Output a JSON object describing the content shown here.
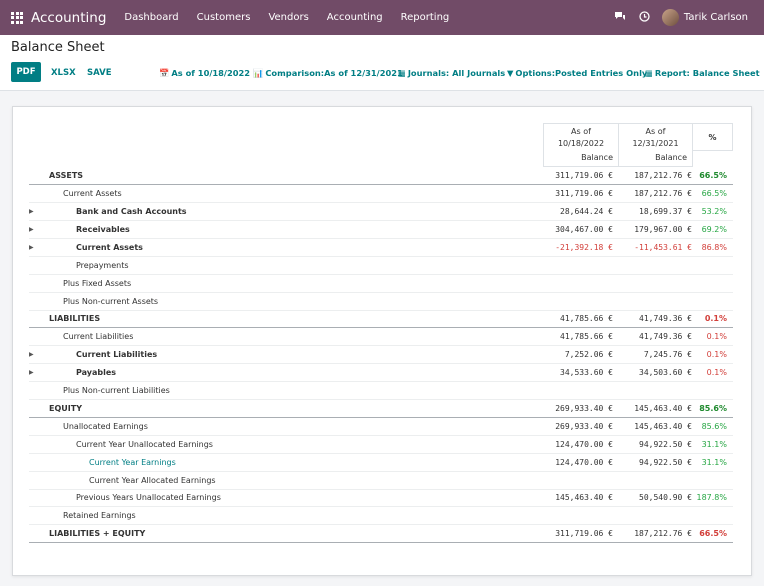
{
  "navbar": {
    "brand": "Accounting",
    "menus": [
      "Dashboard",
      "Customers",
      "Vendors",
      "Accounting",
      "Reporting"
    ],
    "chat_icon": "chat-icon",
    "clock_icon": "clock-icon",
    "user_name": "Tarik Carlson",
    "bg_color": "#714b67"
  },
  "control": {
    "title": "Balance Sheet",
    "buttons": {
      "pdf": "PDF",
      "xlsx": "XLSX",
      "save": "SAVE"
    },
    "filters": {
      "date": "As of 10/18/2022",
      "comparison": "Comparison:As of 12/31/2021",
      "journals": "Journals: All Journals",
      "options": "Options:Posted Entries Only",
      "report": "Report: Balance Sheet"
    },
    "accent_color": "#017e84"
  },
  "columns": {
    "c1": {
      "line1": "As of",
      "line2": "10/18/2022",
      "sub": "Balance"
    },
    "c2": {
      "line1": "As of",
      "line2": "12/31/2021",
      "sub": "Balance"
    },
    "pct": "%"
  },
  "rows": [
    {
      "label": "ASSETS",
      "v1": "311,719.06 €",
      "v2": "187,212.76 €",
      "pct": "66.5%"
    },
    {
      "label": "Current Assets",
      "v1": "311,719.06 €",
      "v2": "187,212.76 €",
      "pct": "66.5%"
    },
    {
      "label": "Bank and Cash Accounts",
      "v1": "28,644.24 €",
      "v2": "18,699.37 €",
      "pct": "53.2%"
    },
    {
      "label": "Receivables",
      "v1": "304,467.00 €",
      "v2": "179,967.00 €",
      "pct": "69.2%"
    },
    {
      "label": "Current Assets",
      "v1": "-21,392.18 €",
      "v2": "-11,453.61 €",
      "pct": "86.8%"
    },
    {
      "label": "Prepayments",
      "v1": "",
      "v2": "",
      "pct": ""
    },
    {
      "label": "Plus Fixed Assets",
      "v1": "",
      "v2": "",
      "pct": ""
    },
    {
      "label": "Plus Non-current Assets",
      "v1": "",
      "v2": "",
      "pct": ""
    },
    {
      "label": "LIABILITIES",
      "v1": "41,785.66 €",
      "v2": "41,749.36 €",
      "pct": "0.1%"
    },
    {
      "label": "Current Liabilities",
      "v1": "41,785.66 €",
      "v2": "41,749.36 €",
      "pct": "0.1%"
    },
    {
      "label": "Current Liabilities",
      "v1": "7,252.06 €",
      "v2": "7,245.76 €",
      "pct": "0.1%"
    },
    {
      "label": "Payables",
      "v1": "34,533.60 €",
      "v2": "34,503.60 €",
      "pct": "0.1%"
    },
    {
      "label": "Plus Non-current Liabilities",
      "v1": "",
      "v2": "",
      "pct": ""
    },
    {
      "label": "EQUITY",
      "v1": "269,933.40 €",
      "v2": "145,463.40 €",
      "pct": "85.6%"
    },
    {
      "label": "Unallocated Earnings",
      "v1": "269,933.40 €",
      "v2": "145,463.40 €",
      "pct": "85.6%"
    },
    {
      "label": "Current Year Unallocated Earnings",
      "v1": "124,470.00 €",
      "v2": "94,922.50 €",
      "pct": "31.1%"
    },
    {
      "label": "Current Year Earnings",
      "v1": "124,470.00 €",
      "v2": "94,922.50 €",
      "pct": "31.1%"
    },
    {
      "label": "Current Year Allocated Earnings",
      "v1": "",
      "v2": "",
      "pct": ""
    },
    {
      "label": "Previous Years Unallocated Earnings",
      "v1": "145,463.40 €",
      "v2": "50,540.90 €",
      "pct": "187.8%"
    },
    {
      "label": "Retained Earnings",
      "v1": "",
      "v2": "",
      "pct": ""
    },
    {
      "label": "LIABILITIES + EQUITY",
      "v1": "311,719.06 €",
      "v2": "187,212.76 €",
      "pct": "66.5%"
    }
  ]
}
